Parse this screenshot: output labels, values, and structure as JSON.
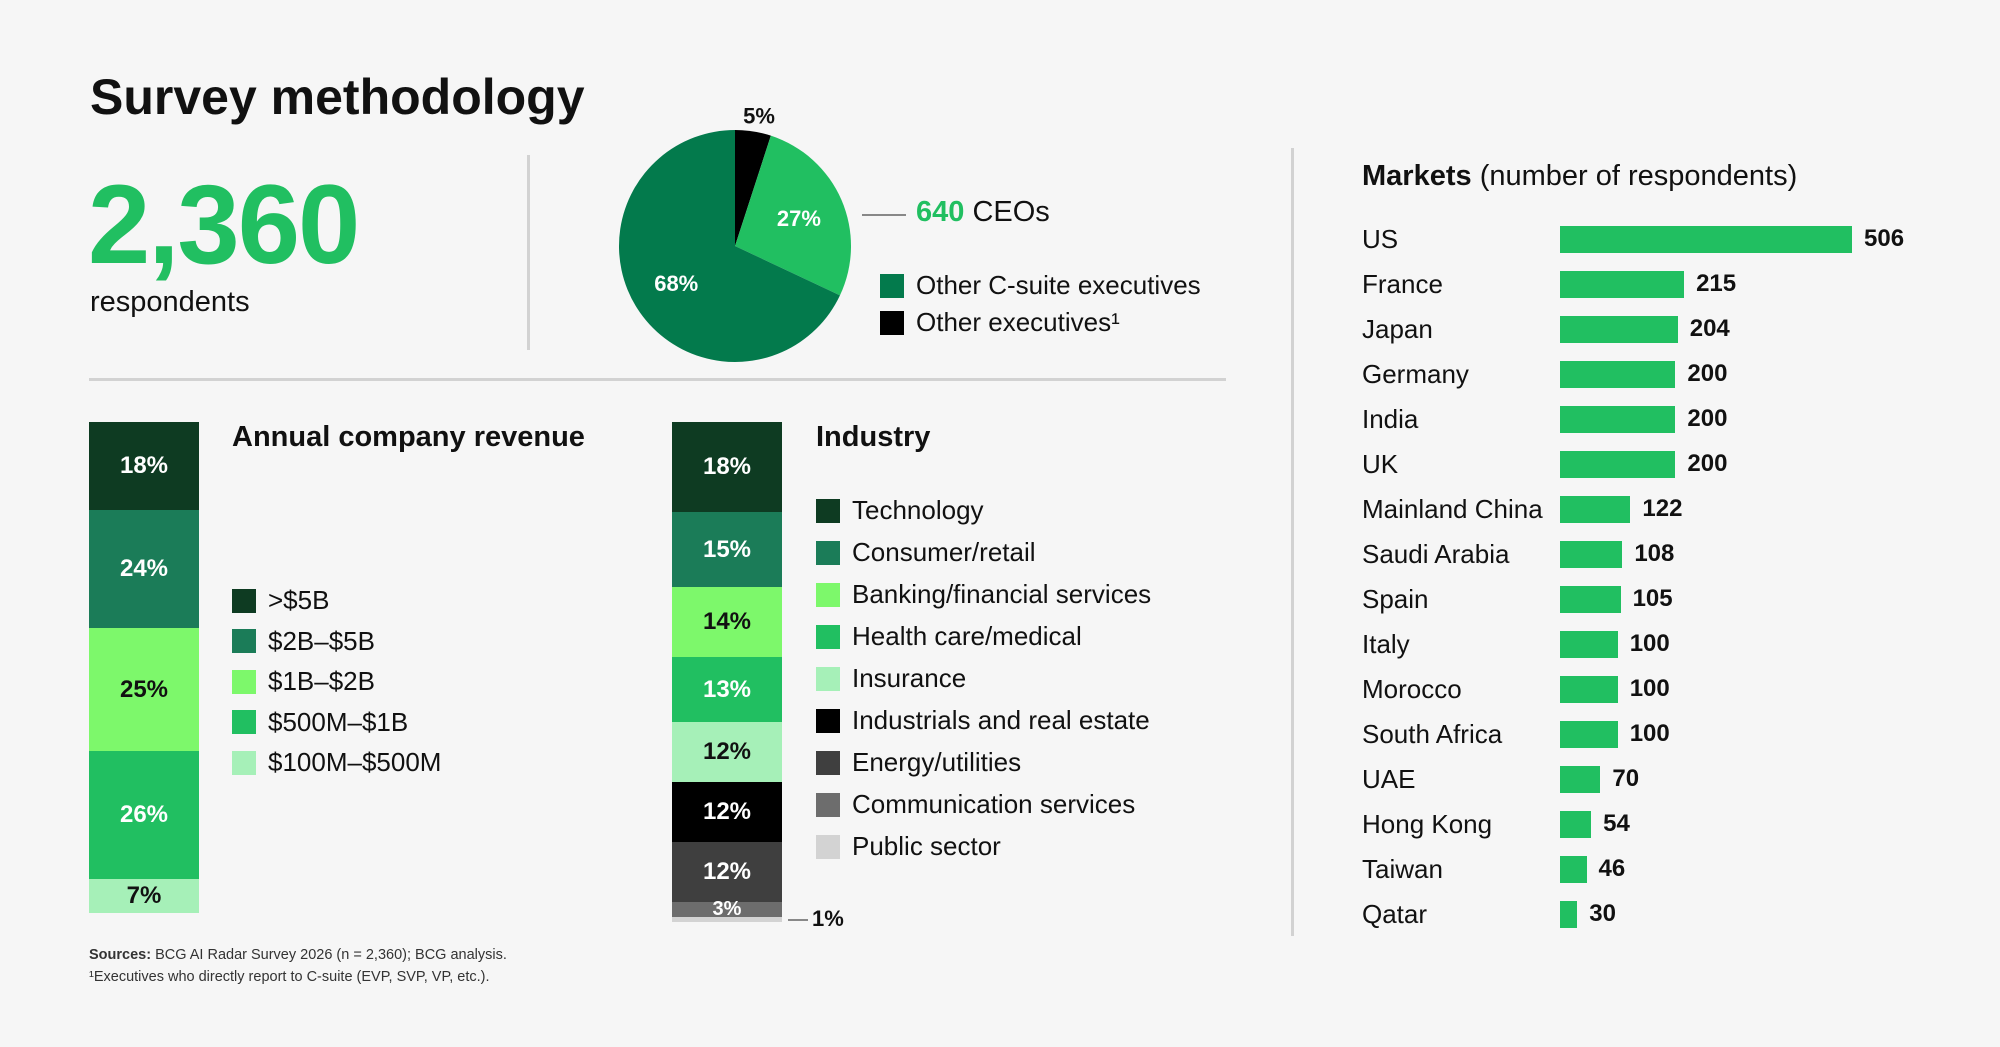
{
  "title": "Survey methodology",
  "respondents": {
    "number": "2,360",
    "label": "respondents"
  },
  "chart_data": [
    {
      "type": "pie",
      "title": "",
      "slices": [
        {
          "label": "CEOs",
          "value": 27,
          "display": "27%",
          "color": "#21bf61"
        },
        {
          "label": "Other C-suite executives",
          "value": 68,
          "display": "68%",
          "color": "#037a4c"
        },
        {
          "label": "Other executives¹",
          "value": 5,
          "display": "5%",
          "color": "#000000"
        }
      ],
      "callout": {
        "number": "640",
        "text": " CEOs"
      }
    },
    {
      "type": "bar",
      "stacked": true,
      "title": "Annual company revenue",
      "categories": [
        ">$5B",
        "$2B–$5B",
        "$1B–$2B",
        "$500M–$1B",
        "$100M–$500M"
      ],
      "values": [
        18,
        24,
        25,
        26,
        7
      ],
      "labels": [
        "18%",
        "24%",
        "25%",
        "26%",
        "7%"
      ],
      "colors": [
        "#0e3b22",
        "#1b7c58",
        "#7df86b",
        "#21bf61",
        "#a6f0b8"
      ],
      "label_colors": [
        "#ffffff",
        "#ffffff",
        "#111111",
        "#ffffff",
        "#111111"
      ]
    },
    {
      "type": "bar",
      "stacked": true,
      "title": "Industry",
      "categories": [
        "Technology",
        "Consumer/retail",
        "Banking/financial services",
        "Health care/medical",
        "Insurance",
        "Industrials and real estate",
        "Energy/utilities",
        "Communication services",
        "Public sector"
      ],
      "values": [
        18,
        15,
        14,
        13,
        12,
        12,
        12,
        3,
        1
      ],
      "labels": [
        "18%",
        "15%",
        "14%",
        "13%",
        "12%",
        "12%",
        "12%",
        "3%",
        "1%"
      ],
      "colors": [
        "#0e3b22",
        "#1b7c58",
        "#7df86b",
        "#21bf61",
        "#a6f0b8",
        "#000000",
        "#3f3f3f",
        "#6d6d6d",
        "#d3d3d3"
      ],
      "label_colors": [
        "#ffffff",
        "#ffffff",
        "#111111",
        "#ffffff",
        "#111111",
        "#ffffff",
        "#ffffff",
        "#ffffff",
        "#111111"
      ]
    },
    {
      "type": "bar",
      "orientation": "horizontal",
      "title": "Markets",
      "subtitle": "(number of respondents)",
      "categories": [
        "US",
        "France",
        "Japan",
        "Germany",
        "India",
        "UK",
        "Mainland China",
        "Saudi Arabia",
        "Spain",
        "Italy",
        "Morocco",
        "South Africa",
        "UAE",
        "Hong Kong",
        "Taiwan",
        "Qatar"
      ],
      "values": [
        506,
        215,
        204,
        200,
        200,
        200,
        122,
        108,
        105,
        100,
        100,
        100,
        70,
        54,
        46,
        30
      ],
      "color": "#21bf61"
    }
  ],
  "sources": {
    "label": "Sources:",
    "text": " BCG AI Radar Survey 2026 (n = 2,360); BCG analysis.",
    "footnote": "¹Executives who directly report to C-suite (EVP, SVP, VP, etc.)."
  }
}
